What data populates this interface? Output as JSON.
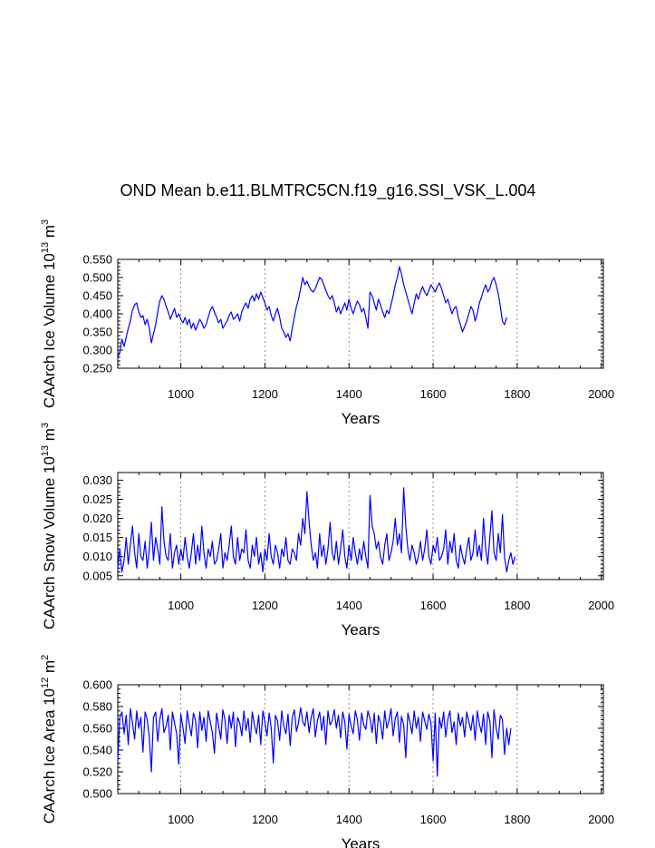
{
  "title": "OND Mean b.e11.BLMTRC5CN.f19_g16.SSI_VSK_L.004",
  "line_color": "#0000ff",
  "chart_data": [
    {
      "type": "line",
      "title": "OND Mean b.e11.BLMTRC5CN.f19_g16.SSI_VSK_L.004",
      "xlabel": "Years",
      "ylabel": "CAArch Ice Volume 10",
      "ylabel_exp": "13",
      "ylabel_unit": " m",
      "ylabel_unit_exp": "3",
      "xlim": [
        850,
        2005
      ],
      "ylim": [
        0.25,
        0.55
      ],
      "xticks": [
        "1000",
        "1200",
        "1400",
        "1600",
        "1800",
        "2000"
      ],
      "yticks": [
        "0.250",
        "0.300",
        "0.350",
        "0.400",
        "0.450",
        "0.500",
        "0.550"
      ],
      "grid_x": true,
      "x_step": 5,
      "series": [
        {
          "name": "ice_volume",
          "x_start": 850,
          "values": [
            0.28,
            0.295,
            0.33,
            0.31,
            0.335,
            0.36,
            0.38,
            0.41,
            0.425,
            0.43,
            0.405,
            0.39,
            0.395,
            0.37,
            0.385,
            0.36,
            0.32,
            0.345,
            0.37,
            0.405,
            0.435,
            0.45,
            0.44,
            0.42,
            0.405,
            0.385,
            0.4,
            0.415,
            0.39,
            0.4,
            0.385,
            0.375,
            0.39,
            0.37,
            0.385,
            0.36,
            0.375,
            0.355,
            0.37,
            0.385,
            0.375,
            0.36,
            0.37,
            0.39,
            0.41,
            0.42,
            0.405,
            0.39,
            0.375,
            0.385,
            0.36,
            0.37,
            0.38,
            0.395,
            0.405,
            0.385,
            0.39,
            0.4,
            0.38,
            0.405,
            0.42,
            0.43,
            0.415,
            0.44,
            0.45,
            0.435,
            0.455,
            0.44,
            0.46,
            0.445,
            0.43,
            0.41,
            0.42,
            0.395,
            0.38,
            0.4,
            0.415,
            0.39,
            0.36,
            0.35,
            0.335,
            0.345,
            0.325,
            0.36,
            0.39,
            0.42,
            0.44,
            0.47,
            0.5,
            0.48,
            0.49,
            0.475,
            0.465,
            0.46,
            0.47,
            0.485,
            0.5,
            0.495,
            0.48,
            0.465,
            0.45,
            0.44,
            0.45,
            0.43,
            0.405,
            0.42,
            0.4,
            0.415,
            0.43,
            0.41,
            0.44,
            0.415,
            0.4,
            0.42,
            0.435,
            0.425,
            0.405,
            0.415,
            0.39,
            0.36,
            0.46,
            0.45,
            0.43,
            0.41,
            0.44,
            0.425,
            0.405,
            0.39,
            0.41,
            0.4,
            0.425,
            0.45,
            0.48,
            0.5,
            0.53,
            0.51,
            0.48,
            0.46,
            0.44,
            0.42,
            0.4,
            0.43,
            0.455,
            0.44,
            0.46,
            0.475,
            0.46,
            0.45,
            0.465,
            0.48,
            0.47,
            0.46,
            0.475,
            0.485,
            0.47,
            0.45,
            0.43,
            0.44,
            0.42,
            0.4,
            0.415,
            0.42,
            0.39,
            0.37,
            0.35,
            0.365,
            0.38,
            0.4,
            0.42,
            0.41,
            0.38,
            0.4,
            0.43,
            0.445,
            0.465,
            0.48,
            0.46,
            0.47,
            0.49,
            0.5,
            0.48,
            0.455,
            0.42,
            0.38,
            0.37,
            0.39
          ]
        }
      ]
    },
    {
      "type": "line",
      "xlabel": "Years",
      "ylabel": "CAArch Snow Volume 10",
      "ylabel_exp": "13",
      "ylabel_unit": " m",
      "ylabel_unit_exp": "3",
      "xlim": [
        850,
        2005
      ],
      "ylim": [
        0.004,
        0.032
      ],
      "xticks": [
        "1000",
        "1200",
        "1400",
        "1600",
        "1800",
        "2000"
      ],
      "yticks": [
        "0.005",
        "0.010",
        "0.015",
        "0.020",
        "0.025",
        "0.030"
      ],
      "grid_x": true,
      "x_step": 5,
      "series": [
        {
          "name": "snow_volume",
          "x_start": 850,
          "values": [
            0.007,
            0.012,
            0.006,
            0.009,
            0.015,
            0.008,
            0.013,
            0.018,
            0.011,
            0.007,
            0.016,
            0.01,
            0.009,
            0.014,
            0.007,
            0.012,
            0.019,
            0.009,
            0.015,
            0.012,
            0.008,
            0.023,
            0.014,
            0.01,
            0.009,
            0.016,
            0.007,
            0.011,
            0.013,
            0.008,
            0.012,
            0.009,
            0.015,
            0.01,
            0.007,
            0.011,
            0.016,
            0.008,
            0.013,
            0.009,
            0.018,
            0.011,
            0.007,
            0.012,
            0.01,
            0.014,
            0.008,
            0.009,
            0.012,
            0.016,
            0.007,
            0.011,
            0.009,
            0.013,
            0.018,
            0.01,
            0.008,
            0.015,
            0.009,
            0.012,
            0.011,
            0.017,
            0.009,
            0.007,
            0.013,
            0.01,
            0.015,
            0.008,
            0.011,
            0.006,
            0.012,
            0.009,
            0.016,
            0.01,
            0.008,
            0.013,
            0.011,
            0.007,
            0.012,
            0.01,
            0.015,
            0.009,
            0.008,
            0.012,
            0.011,
            0.009,
            0.016,
            0.013,
            0.02,
            0.016,
            0.027,
            0.019,
            0.013,
            0.009,
            0.011,
            0.007,
            0.016,
            0.01,
            0.013,
            0.008,
            0.012,
            0.019,
            0.011,
            0.009,
            0.014,
            0.008,
            0.012,
            0.017,
            0.01,
            0.007,
            0.013,
            0.009,
            0.015,
            0.011,
            0.008,
            0.012,
            0.009,
            0.014,
            0.01,
            0.007,
            0.026,
            0.018,
            0.016,
            0.012,
            0.014,
            0.01,
            0.008,
            0.013,
            0.016,
            0.009,
            0.011,
            0.014,
            0.02,
            0.013,
            0.016,
            0.011,
            0.028,
            0.018,
            0.012,
            0.009,
            0.013,
            0.011,
            0.008,
            0.01,
            0.014,
            0.009,
            0.012,
            0.017,
            0.01,
            0.008,
            0.013,
            0.011,
            0.015,
            0.009,
            0.01,
            0.012,
            0.017,
            0.008,
            0.014,
            0.011,
            0.016,
            0.009,
            0.007,
            0.013,
            0.01,
            0.008,
            0.012,
            0.015,
            0.009,
            0.011,
            0.017,
            0.01,
            0.013,
            0.009,
            0.02,
            0.012,
            0.008,
            0.015,
            0.022,
            0.011,
            0.009,
            0.016,
            0.011,
            0.021,
            0.01,
            0.006,
            0.009,
            0.011,
            0.008,
            0.01
          ]
        }
      ]
    },
    {
      "type": "line",
      "xlabel": "Years",
      "ylabel": "CAArch Ice Area 10",
      "ylabel_exp": "12",
      "ylabel_unit": " m",
      "ylabel_unit_exp": "2",
      "xlim": [
        850,
        2005
      ],
      "ylim": [
        0.5,
        0.6
      ],
      "xticks": [
        "1000",
        "1200",
        "1400",
        "1600",
        "1800",
        "2000"
      ],
      "yticks": [
        "0.500",
        "0.520",
        "0.540",
        "0.560",
        "0.580",
        "0.600"
      ],
      "grid_x": true,
      "x_step": 5,
      "series": [
        {
          "name": "ice_area",
          "x_start": 850,
          "values": [
            0.53,
            0.57,
            0.575,
            0.555,
            0.572,
            0.545,
            0.578,
            0.565,
            0.55,
            0.576,
            0.56,
            0.57,
            0.538,
            0.575,
            0.568,
            0.552,
            0.52,
            0.57,
            0.575,
            0.548,
            0.568,
            0.578,
            0.556,
            0.562,
            0.572,
            0.54,
            0.575,
            0.565,
            0.555,
            0.527,
            0.573,
            0.561,
            0.546,
            0.576,
            0.564,
            0.553,
            0.574,
            0.567,
            0.542,
            0.575,
            0.558,
            0.57,
            0.548,
            0.576,
            0.566,
            0.556,
            0.537,
            0.574,
            0.562,
            0.55,
            0.577,
            0.568,
            0.546,
            0.572,
            0.56,
            0.575,
            0.543,
            0.57,
            0.565,
            0.553,
            0.576,
            0.558,
            0.569,
            0.547,
            0.575,
            0.563,
            0.555,
            0.572,
            0.545,
            0.576,
            0.566,
            0.553,
            0.574,
            0.56,
            0.528,
            0.572,
            0.567,
            0.549,
            0.576,
            0.562,
            0.555,
            0.573,
            0.544,
            0.57,
            0.577,
            0.557,
            0.565,
            0.579,
            0.566,
            0.562,
            0.575,
            0.556,
            0.57,
            0.578,
            0.552,
            0.567,
            0.575,
            0.558,
            0.571,
            0.545,
            0.576,
            0.563,
            0.567,
            0.577,
            0.56,
            0.572,
            0.551,
            0.575,
            0.566,
            0.541,
            0.573,
            0.562,
            0.555,
            0.576,
            0.568,
            0.549,
            0.574,
            0.563,
            0.559,
            0.576,
            0.569,
            0.556,
            0.574,
            0.546,
            0.572,
            0.565,
            0.55,
            0.576,
            0.56,
            0.567,
            0.578,
            0.553,
            0.569,
            0.575,
            0.547,
            0.571,
            0.563,
            0.533,
            0.574,
            0.566,
            0.555,
            0.576,
            0.56,
            0.57,
            0.548,
            0.575,
            0.567,
            0.559,
            0.573,
            0.565,
            0.53,
            0.574,
            0.516,
            0.57,
            0.56,
            0.575,
            0.552,
            0.568,
            0.576,
            0.556,
            0.566,
            0.545,
            0.574,
            0.562,
            0.57,
            0.552,
            0.575,
            0.566,
            0.558,
            0.572,
            0.549,
            0.576,
            0.564,
            0.556,
            0.573,
            0.545,
            0.575,
            0.567,
            0.533,
            0.577,
            0.56,
            0.55,
            0.572,
            0.568,
            0.536,
            0.56,
            0.545,
            0.56
          ]
        }
      ]
    }
  ]
}
